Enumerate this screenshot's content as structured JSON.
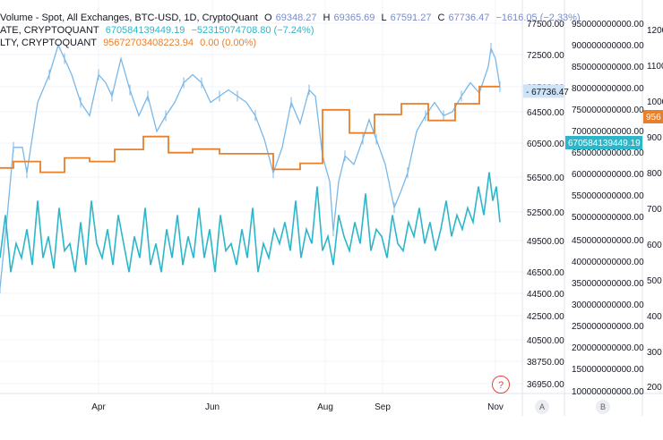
{
  "legend": {
    "line1": {
      "title": "Volume - Spot, All Exchanges, BTC-USD, 1D, CryptoQuant",
      "o_label": "O",
      "o_value": "69348.27",
      "h_label": "H",
      "h_value": "69365.69",
      "l_label": "L",
      "l_value": "67591.27",
      "c_label": "C",
      "c_value": "67736.47",
      "change": "−1616.05 (−2.33%)"
    },
    "line2": {
      "name": "ATE, CRYPTOQUANT",
      "value": "670584139449.19",
      "change": "−52315074708.80 (−7.24%)"
    },
    "line3": {
      "name": "LTY, CRYPTOQUANT",
      "value": "95672703408223.94",
      "change": "0.00 (0.00%)"
    }
  },
  "axis_a_label": "A",
  "axis_b_label": "B",
  "help_label": "?",
  "colors": {
    "price": "#7ab8e8",
    "blue_series": "#2bb7c9",
    "orange_series": "#e87f2b",
    "grid": "#f0f3fa"
  },
  "chart_data": {
    "type": "line",
    "x_ticks": [
      "Apr",
      "Jun",
      "Aug",
      "Sep",
      "Nov"
    ],
    "price_axis": {
      "ticks": [
        "77500.00",
        "72500.00",
        "68500.00",
        "64500.00",
        "60500.00",
        "56500.00",
        "52500.00",
        "49500.00",
        "46500.00",
        "44500.00",
        "42500.00",
        "40500.00",
        "38750.00",
        "36950.00"
      ],
      "last_price": "67736.47"
    },
    "b_axis": {
      "ticks": [
        "950000000000.00",
        "900000000000.00",
        "850000000000.00",
        "800000000000.00",
        "750000000000.00",
        "700000000000.00",
        "650000000000.00",
        "600000000000.00",
        "550000000000.00",
        "500000000000.00",
        "450000000000.00",
        "400000000000.00",
        "350000000000.00",
        "300000000000.00",
        "250000000000.00",
        "200000000000.00",
        "150000000000.00",
        "100000000000.00"
      ],
      "last_value": "670584139449.19"
    },
    "c_axis": {
      "ticks": [
        "1200",
        "1100",
        "1000",
        "900",
        "800",
        "700",
        "600",
        "500",
        "400",
        "300",
        "200"
      ],
      "last_value": "956"
    },
    "price_path": [
      [
        0,
        45000
      ],
      [
        8,
        52000
      ],
      [
        15,
        60000
      ],
      [
        25,
        60000
      ],
      [
        30,
        57000
      ],
      [
        42,
        66000
      ],
      [
        55,
        70000
      ],
      [
        65,
        74000
      ],
      [
        72,
        72000
      ],
      [
        80,
        70000
      ],
      [
        90,
        66000
      ],
      [
        100,
        64000
      ],
      [
        110,
        70000
      ],
      [
        118,
        69000
      ],
      [
        125,
        67000
      ],
      [
        135,
        72000
      ],
      [
        145,
        68000
      ],
      [
        155,
        64000
      ],
      [
        165,
        67000
      ],
      [
        175,
        62000
      ],
      [
        185,
        64000
      ],
      [
        195,
        66000
      ],
      [
        205,
        69000
      ],
      [
        215,
        70000
      ],
      [
        225,
        69000
      ],
      [
        235,
        66000
      ],
      [
        245,
        67000
      ],
      [
        255,
        68000
      ],
      [
        265,
        67000
      ],
      [
        275,
        66000
      ],
      [
        285,
        64000
      ],
      [
        295,
        61000
      ],
      [
        305,
        57000
      ],
      [
        315,
        60000
      ],
      [
        325,
        66000
      ],
      [
        335,
        63000
      ],
      [
        345,
        68000
      ],
      [
        352,
        67000
      ],
      [
        360,
        59000
      ],
      [
        368,
        56000
      ],
      [
        372,
        50500
      ],
      [
        378,
        56000
      ],
      [
        385,
        59000
      ],
      [
        395,
        58000
      ],
      [
        405,
        61000
      ],
      [
        412,
        63500
      ],
      [
        420,
        61000
      ],
      [
        430,
        58000
      ],
      [
        440,
        53000
      ],
      [
        448,
        55000
      ],
      [
        455,
        57000
      ],
      [
        465,
        62000
      ],
      [
        475,
        64000
      ],
      [
        485,
        66000
      ],
      [
        495,
        64000
      ],
      [
        505,
        64500
      ],
      [
        515,
        67000
      ],
      [
        525,
        69000
      ],
      [
        535,
        67500
      ],
      [
        545,
        71000
      ],
      [
        548,
        73500
      ],
      [
        553,
        72000
      ],
      [
        558,
        68500
      ]
    ],
    "blue_series_path": [
      [
        0,
        560
      ],
      [
        6,
        680
      ],
      [
        12,
        520
      ],
      [
        18,
        600
      ],
      [
        24,
        560
      ],
      [
        30,
        640
      ],
      [
        36,
        540
      ],
      [
        42,
        720
      ],
      [
        48,
        560
      ],
      [
        54,
        620
      ],
      [
        60,
        530
      ],
      [
        66,
        700
      ],
      [
        72,
        580
      ],
      [
        78,
        600
      ],
      [
        84,
        520
      ],
      [
        90,
        660
      ],
      [
        96,
        540
      ],
      [
        102,
        720
      ],
      [
        108,
        600
      ],
      [
        114,
        560
      ],
      [
        120,
        640
      ],
      [
        126,
        540
      ],
      [
        132,
        680
      ],
      [
        138,
        600
      ],
      [
        144,
        520
      ],
      [
        150,
        620
      ],
      [
        156,
        560
      ],
      [
        162,
        700
      ],
      [
        168,
        540
      ],
      [
        174,
        600
      ],
      [
        180,
        520
      ],
      [
        186,
        640
      ],
      [
        192,
        560
      ],
      [
        198,
        680
      ],
      [
        204,
        540
      ],
      [
        210,
        620
      ],
      [
        216,
        560
      ],
      [
        222,
        700
      ],
      [
        228,
        560
      ],
      [
        234,
        640
      ],
      [
        240,
        520
      ],
      [
        246,
        680
      ],
      [
        252,
        580
      ],
      [
        258,
        600
      ],
      [
        264,
        540
      ],
      [
        270,
        640
      ],
      [
        276,
        560
      ],
      [
        282,
        700
      ],
      [
        288,
        520
      ],
      [
        294,
        600
      ],
      [
        300,
        560
      ],
      [
        306,
        640
      ],
      [
        312,
        600
      ],
      [
        318,
        660
      ],
      [
        324,
        580
      ],
      [
        330,
        720
      ],
      [
        336,
        560
      ],
      [
        342,
        640
      ],
      [
        348,
        600
      ],
      [
        354,
        760
      ],
      [
        360,
        580
      ],
      [
        366,
        620
      ],
      [
        372,
        540
      ],
      [
        378,
        680
      ],
      [
        384,
        620
      ],
      [
        390,
        580
      ],
      [
        396,
        660
      ],
      [
        402,
        600
      ],
      [
        408,
        740
      ],
      [
        414,
        580
      ],
      [
        420,
        640
      ],
      [
        426,
        620
      ],
      [
        432,
        560
      ],
      [
        438,
        680
      ],
      [
        444,
        600
      ],
      [
        450,
        580
      ],
      [
        456,
        660
      ],
      [
        462,
        620
      ],
      [
        468,
        700
      ],
      [
        474,
        600
      ],
      [
        480,
        660
      ],
      [
        486,
        580
      ],
      [
        492,
        640
      ],
      [
        498,
        720
      ],
      [
        504,
        620
      ],
      [
        510,
        680
      ],
      [
        516,
        640
      ],
      [
        522,
        700
      ],
      [
        528,
        660
      ],
      [
        534,
        760
      ],
      [
        540,
        680
      ],
      [
        546,
        800
      ],
      [
        550,
        720
      ],
      [
        554,
        760
      ],
      [
        558,
        660
      ]
    ],
    "orange_series_path": [
      [
        0,
        812
      ],
      [
        15,
        812
      ],
      [
        15,
        830
      ],
      [
        45,
        830
      ],
      [
        45,
        800
      ],
      [
        72,
        800
      ],
      [
        72,
        840
      ],
      [
        100,
        840
      ],
      [
        100,
        830
      ],
      [
        128,
        830
      ],
      [
        128,
        864
      ],
      [
        160,
        864
      ],
      [
        160,
        900
      ],
      [
        188,
        900
      ],
      [
        188,
        855
      ],
      [
        215,
        855
      ],
      [
        215,
        865
      ],
      [
        245,
        865
      ],
      [
        245,
        852
      ],
      [
        305,
        852
      ],
      [
        305,
        808
      ],
      [
        335,
        808
      ],
      [
        335,
        825
      ],
      [
        360,
        825
      ],
      [
        360,
        975
      ],
      [
        390,
        975
      ],
      [
        390,
        910
      ],
      [
        418,
        910
      ],
      [
        418,
        962
      ],
      [
        448,
        962
      ],
      [
        448,
        992
      ],
      [
        478,
        992
      ],
      [
        478,
        945
      ],
      [
        508,
        945
      ],
      [
        508,
        992
      ],
      [
        535,
        992
      ],
      [
        535,
        1040
      ],
      [
        558,
        1040
      ]
    ]
  }
}
